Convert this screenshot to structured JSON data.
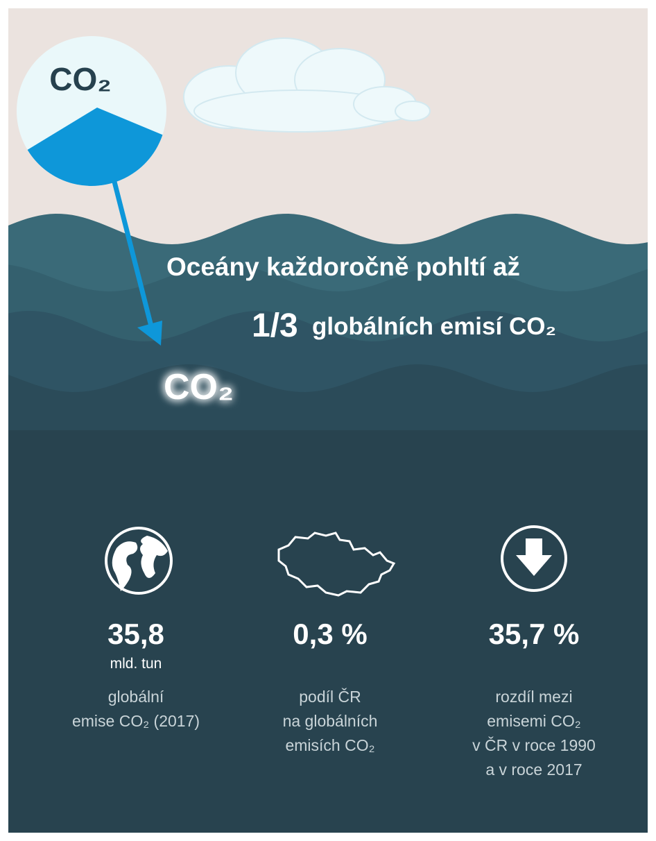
{
  "circle_label": "CO₂",
  "headline": {
    "line1": "Oceány každoročně pohltí až",
    "fraction": "1/3",
    "line2": "globálních emisí CO₂"
  },
  "glow_label": "CO₂",
  "stats": [
    {
      "value": "35,8",
      "unit": "mld. tun",
      "description": [
        "globální",
        "emise CO₂ (2017)"
      ]
    },
    {
      "value": "0,3 %",
      "description": [
        "podíl ČR",
        "na globálních",
        "emisích CO₂"
      ]
    },
    {
      "value": "35,7 %",
      "description": [
        "rozdíl mezi",
        "emisemi CO₂",
        "v ČR v roce 1990",
        "a v roce 2017"
      ]
    }
  ]
}
